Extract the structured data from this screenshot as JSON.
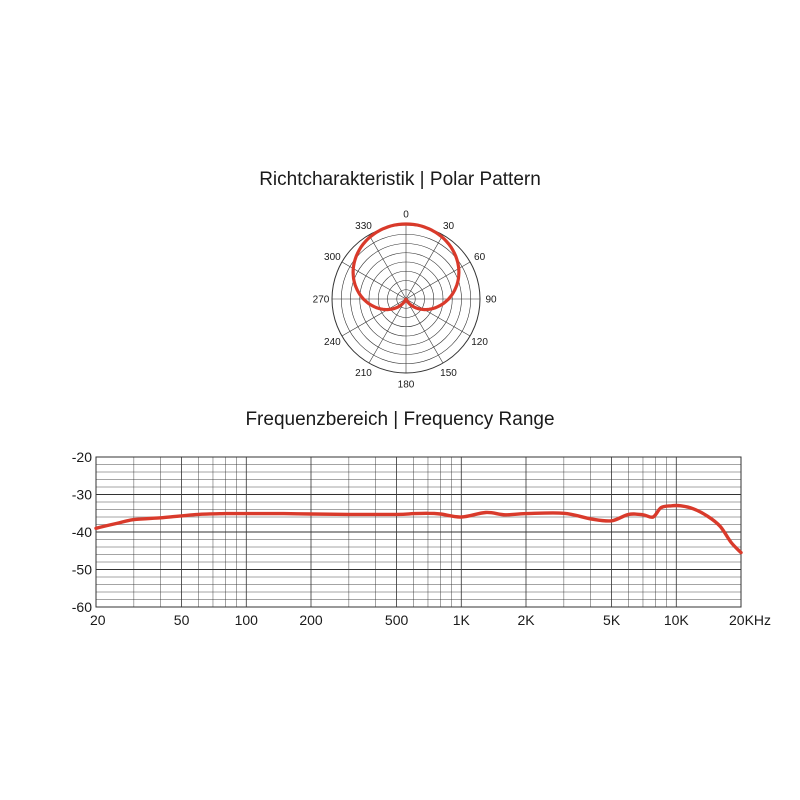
{
  "polar": {
    "title": "Richtcharakteristik | Polar Pattern",
    "angle_labels": [
      "0",
      "30",
      "60",
      "90",
      "120",
      "150",
      "180",
      "210",
      "240",
      "270",
      "300",
      "330"
    ]
  },
  "frequency": {
    "title": "Frequenzbereich | Frequency Range"
  },
  "colors": {
    "curve": "#d93a2b",
    "grid": "#333333"
  },
  "chart_data": [
    {
      "type": "polar",
      "title": "Richtcharakteristik | Polar Pattern",
      "angle_ticks": [
        0,
        30,
        60,
        90,
        120,
        150,
        180,
        210,
        240,
        270,
        300,
        330
      ],
      "pattern": "cardioid",
      "r_max": 1,
      "angles_deg": [
        0,
        30,
        60,
        90,
        120,
        150,
        180,
        210,
        240,
        270,
        300,
        330
      ],
      "radius": [
        1.0,
        0.95,
        0.82,
        0.58,
        0.32,
        0.14,
        0.05,
        0.14,
        0.32,
        0.58,
        0.82,
        0.95
      ]
    },
    {
      "type": "line",
      "title": "Frequenzbereich | Frequency Range",
      "x_scale": "log",
      "xlim": [
        20,
        20000
      ],
      "ylim": [
        -60,
        -20
      ],
      "x_ticks": [
        20,
        50,
        100,
        200,
        500,
        1000,
        2000,
        5000,
        10000,
        20000
      ],
      "x_tick_labels": [
        "20",
        "50",
        "100",
        "200",
        "500",
        "1K",
        "2K",
        "5K",
        "10K",
        "20KHz"
      ],
      "y_ticks": [
        -20,
        -30,
        -40,
        -50,
        -60
      ],
      "y_tick_labels": [
        "-20",
        "-30",
        "-40",
        "-50",
        "-60"
      ],
      "grid": true,
      "series": [
        {
          "x": [
            20,
            25,
            30,
            40,
            50,
            60,
            80,
            100,
            150,
            200,
            300,
            500,
            600,
            700,
            800,
            1000,
            1300,
            1600,
            2000,
            3000,
            4000,
            5000,
            6000,
            7000,
            7800,
            8500,
            9500,
            10500,
            12000,
            14000,
            16000,
            18000,
            20000
          ],
          "y": [
            -39,
            -37.7,
            -36.7,
            -36.2,
            -35.7,
            -35.3,
            -35.1,
            -35.1,
            -35.1,
            -35.2,
            -35.3,
            -35.3,
            -35.1,
            -35.0,
            -35.2,
            -36.0,
            -34.8,
            -35.4,
            -35.1,
            -35.0,
            -36.5,
            -37.0,
            -35.3,
            -35.4,
            -36.0,
            -33.5,
            -33.0,
            -33.0,
            -33.8,
            -35.8,
            -38.5,
            -42.8,
            -45.5
          ]
        }
      ]
    }
  ]
}
